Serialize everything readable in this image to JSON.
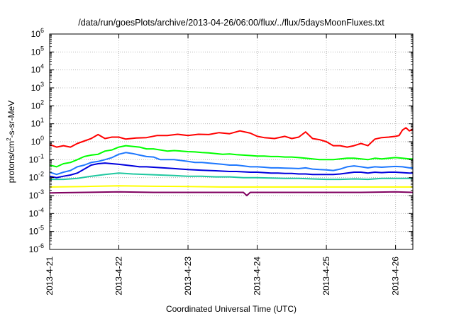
{
  "chart_data": {
    "type": "line",
    "title": "/data/run/goesPlots/archive/2013-04-26/06:00/flux/../flux/5daysMoonFluxes.txt",
    "xlabel": "Coordinated Universal Time (UTC)",
    "ylabel": {
      "prefix": "protons/cm",
      "superscript": "2",
      "suffix": "-s-sr-MeV"
    },
    "yscale": "log",
    "ylim_exponents": [
      -6,
      6
    ],
    "y_tick_labels": [
      {
        "exp": 6,
        "base": "10",
        "sup": "6"
      },
      {
        "exp": 5,
        "base": "10",
        "sup": "5"
      },
      {
        "exp": 4,
        "base": "10",
        "sup": "4"
      },
      {
        "exp": 3,
        "base": "10",
        "sup": "3"
      },
      {
        "exp": 2,
        "base": "10",
        "sup": "2"
      },
      {
        "exp": 1,
        "base": "10",
        "sup": "1"
      },
      {
        "exp": 0,
        "base": "10",
        "sup": "0"
      },
      {
        "exp": -1,
        "base": "10",
        "sup": "-1"
      },
      {
        "exp": -2,
        "base": "10",
        "sup": "-2"
      },
      {
        "exp": -3,
        "base": "10",
        "sup": "-3"
      },
      {
        "exp": -4,
        "base": "10",
        "sup": "-4"
      },
      {
        "exp": -5,
        "base": "10",
        "sup": "-5"
      },
      {
        "exp": -6,
        "base": "10",
        "sup": "-6"
      }
    ],
    "xlim_days": [
      0,
      5.25
    ],
    "x_ticks": [
      {
        "day": 0,
        "label": "2013-4-21"
      },
      {
        "day": 1,
        "label": "2013-4-22"
      },
      {
        "day": 2,
        "label": "2013-4-23"
      },
      {
        "day": 3,
        "label": "2013-4-24"
      },
      {
        "day": 4,
        "label": "2013-4-25"
      },
      {
        "day": 5,
        "label": "2013-4-26"
      }
    ],
    "grid": true,
    "series": [
      {
        "color": "#ff0000",
        "points": [
          [
            0,
            0.7
          ],
          [
            0.1,
            0.5
          ],
          [
            0.2,
            0.6
          ],
          [
            0.3,
            0.5
          ],
          [
            0.4,
            0.8
          ],
          [
            0.5,
            1.1
          ],
          [
            0.6,
            1.5
          ],
          [
            0.7,
            2.5
          ],
          [
            0.8,
            1.5
          ],
          [
            0.9,
            1.8
          ],
          [
            1.0,
            1.8
          ],
          [
            1.1,
            1.4
          ],
          [
            1.25,
            1.6
          ],
          [
            1.4,
            1.7
          ],
          [
            1.55,
            2.2
          ],
          [
            1.7,
            2.2
          ],
          [
            1.85,
            2.6
          ],
          [
            2.0,
            2.2
          ],
          [
            2.15,
            2.6
          ],
          [
            2.3,
            2.5
          ],
          [
            2.45,
            3.2
          ],
          [
            2.6,
            2.8
          ],
          [
            2.75,
            4.0
          ],
          [
            2.9,
            3.0
          ],
          [
            3.0,
            2.0
          ],
          [
            3.1,
            1.7
          ],
          [
            3.25,
            1.5
          ],
          [
            3.4,
            2.0
          ],
          [
            3.5,
            1.5
          ],
          [
            3.6,
            1.8
          ],
          [
            3.7,
            3.5
          ],
          [
            3.8,
            1.5
          ],
          [
            3.9,
            1.3
          ],
          [
            4.0,
            1.0
          ],
          [
            4.1,
            0.6
          ],
          [
            4.2,
            0.6
          ],
          [
            4.3,
            0.5
          ],
          [
            4.4,
            0.6
          ],
          [
            4.5,
            0.8
          ],
          [
            4.6,
            0.6
          ],
          [
            4.7,
            1.4
          ],
          [
            4.8,
            1.7
          ],
          [
            4.9,
            1.8
          ],
          [
            5.0,
            2.0
          ],
          [
            5.05,
            2.2
          ],
          [
            5.1,
            4.5
          ],
          [
            5.15,
            6.0
          ],
          [
            5.2,
            4.0
          ],
          [
            5.25,
            5.0
          ]
        ]
      },
      {
        "color": "#00ff00",
        "points": [
          [
            0,
            0.05
          ],
          [
            0.1,
            0.04
          ],
          [
            0.2,
            0.06
          ],
          [
            0.3,
            0.07
          ],
          [
            0.4,
            0.1
          ],
          [
            0.5,
            0.15
          ],
          [
            0.6,
            0.18
          ],
          [
            0.7,
            0.2
          ],
          [
            0.8,
            0.3
          ],
          [
            0.9,
            0.35
          ],
          [
            1.0,
            0.5
          ],
          [
            1.1,
            0.6
          ],
          [
            1.2,
            0.55
          ],
          [
            1.3,
            0.5
          ],
          [
            1.4,
            0.4
          ],
          [
            1.5,
            0.4
          ],
          [
            1.6,
            0.35
          ],
          [
            1.7,
            0.3
          ],
          [
            1.8,
            0.32
          ],
          [
            1.9,
            0.3
          ],
          [
            2.0,
            0.28
          ],
          [
            2.1,
            0.27
          ],
          [
            2.2,
            0.25
          ],
          [
            2.3,
            0.24
          ],
          [
            2.4,
            0.22
          ],
          [
            2.5,
            0.2
          ],
          [
            2.6,
            0.21
          ],
          [
            2.7,
            0.19
          ],
          [
            2.8,
            0.18
          ],
          [
            2.9,
            0.17
          ],
          [
            3.0,
            0.16
          ],
          [
            3.1,
            0.16
          ],
          [
            3.2,
            0.15
          ],
          [
            3.3,
            0.15
          ],
          [
            3.4,
            0.14
          ],
          [
            3.5,
            0.14
          ],
          [
            3.6,
            0.13
          ],
          [
            3.7,
            0.12
          ],
          [
            3.8,
            0.11
          ],
          [
            3.9,
            0.1
          ],
          [
            4.0,
            0.1
          ],
          [
            4.1,
            0.1
          ],
          [
            4.2,
            0.11
          ],
          [
            4.3,
            0.12
          ],
          [
            4.4,
            0.12
          ],
          [
            4.5,
            0.11
          ],
          [
            4.6,
            0.1
          ],
          [
            4.7,
            0.12
          ],
          [
            4.8,
            0.11
          ],
          [
            4.9,
            0.12
          ],
          [
            5.0,
            0.13
          ],
          [
            5.1,
            0.12
          ],
          [
            5.2,
            0.11
          ],
          [
            5.25,
            0.11
          ]
        ]
      },
      {
        "color": "#1e78ff",
        "points": [
          [
            0,
            0.02
          ],
          [
            0.1,
            0.015
          ],
          [
            0.2,
            0.02
          ],
          [
            0.3,
            0.025
          ],
          [
            0.4,
            0.04
          ],
          [
            0.5,
            0.05
          ],
          [
            0.6,
            0.07
          ],
          [
            0.7,
            0.08
          ],
          [
            0.8,
            0.1
          ],
          [
            0.9,
            0.13
          ],
          [
            1.0,
            0.2
          ],
          [
            1.1,
            0.25
          ],
          [
            1.2,
            0.22
          ],
          [
            1.3,
            0.18
          ],
          [
            1.4,
            0.15
          ],
          [
            1.5,
            0.14
          ],
          [
            1.6,
            0.1
          ],
          [
            1.7,
            0.1
          ],
          [
            1.8,
            0.1
          ],
          [
            1.9,
            0.09
          ],
          [
            2.0,
            0.08
          ],
          [
            2.1,
            0.07
          ],
          [
            2.2,
            0.07
          ],
          [
            2.3,
            0.065
          ],
          [
            2.4,
            0.06
          ],
          [
            2.5,
            0.055
          ],
          [
            2.6,
            0.05
          ],
          [
            2.7,
            0.05
          ],
          [
            2.8,
            0.045
          ],
          [
            2.9,
            0.04
          ],
          [
            3.0,
            0.04
          ],
          [
            3.1,
            0.038
          ],
          [
            3.2,
            0.035
          ],
          [
            3.3,
            0.035
          ],
          [
            3.4,
            0.034
          ],
          [
            3.5,
            0.033
          ],
          [
            3.6,
            0.032
          ],
          [
            3.7,
            0.035
          ],
          [
            3.8,
            0.03
          ],
          [
            3.9,
            0.028
          ],
          [
            4.0,
            0.027
          ],
          [
            4.1,
            0.025
          ],
          [
            4.2,
            0.03
          ],
          [
            4.3,
            0.04
          ],
          [
            4.4,
            0.045
          ],
          [
            4.5,
            0.04
          ],
          [
            4.6,
            0.035
          ],
          [
            4.7,
            0.04
          ],
          [
            4.8,
            0.038
          ],
          [
            4.9,
            0.04
          ],
          [
            5.0,
            0.042
          ],
          [
            5.1,
            0.04
          ],
          [
            5.2,
            0.035
          ],
          [
            5.25,
            0.035
          ]
        ]
      },
      {
        "color": "#0000dd",
        "points": [
          [
            0,
            0.012
          ],
          [
            0.1,
            0.01
          ],
          [
            0.2,
            0.012
          ],
          [
            0.3,
            0.014
          ],
          [
            0.4,
            0.018
          ],
          [
            0.5,
            0.03
          ],
          [
            0.6,
            0.05
          ],
          [
            0.7,
            0.06
          ],
          [
            0.8,
            0.065
          ],
          [
            0.9,
            0.06
          ],
          [
            1.0,
            0.055
          ],
          [
            1.1,
            0.05
          ],
          [
            1.2,
            0.045
          ],
          [
            1.3,
            0.04
          ],
          [
            1.4,
            0.04
          ],
          [
            1.5,
            0.038
          ],
          [
            1.6,
            0.036
          ],
          [
            1.7,
            0.034
          ],
          [
            1.8,
            0.032
          ],
          [
            1.9,
            0.03
          ],
          [
            2.0,
            0.028
          ],
          [
            2.1,
            0.027
          ],
          [
            2.2,
            0.026
          ],
          [
            2.3,
            0.025
          ],
          [
            2.4,
            0.024
          ],
          [
            2.5,
            0.023
          ],
          [
            2.6,
            0.022
          ],
          [
            2.7,
            0.022
          ],
          [
            2.8,
            0.021
          ],
          [
            2.9,
            0.02
          ],
          [
            3.0,
            0.02
          ],
          [
            3.1,
            0.019
          ],
          [
            3.2,
            0.018
          ],
          [
            3.3,
            0.018
          ],
          [
            3.4,
            0.017
          ],
          [
            3.5,
            0.017
          ],
          [
            3.6,
            0.016
          ],
          [
            3.7,
            0.016
          ],
          [
            3.8,
            0.015
          ],
          [
            3.9,
            0.015
          ],
          [
            4.0,
            0.015
          ],
          [
            4.1,
            0.015
          ],
          [
            4.2,
            0.016
          ],
          [
            4.3,
            0.018
          ],
          [
            4.4,
            0.02
          ],
          [
            4.5,
            0.02
          ],
          [
            4.6,
            0.018
          ],
          [
            4.7,
            0.02
          ],
          [
            4.8,
            0.019
          ],
          [
            4.9,
            0.02
          ],
          [
            5.0,
            0.02
          ],
          [
            5.1,
            0.019
          ],
          [
            5.2,
            0.018
          ],
          [
            5.25,
            0.018
          ]
        ]
      },
      {
        "color": "#20c8a0",
        "points": [
          [
            0,
            0.008
          ],
          [
            0.2,
            0.008
          ],
          [
            0.4,
            0.009
          ],
          [
            0.6,
            0.012
          ],
          [
            0.8,
            0.015
          ],
          [
            1.0,
            0.018
          ],
          [
            1.2,
            0.016
          ],
          [
            1.4,
            0.015
          ],
          [
            1.6,
            0.014
          ],
          [
            1.8,
            0.013
          ],
          [
            2.0,
            0.012
          ],
          [
            2.2,
            0.012
          ],
          [
            2.4,
            0.011
          ],
          [
            2.6,
            0.011
          ],
          [
            2.8,
            0.01
          ],
          [
            3.0,
            0.01
          ],
          [
            3.2,
            0.0095
          ],
          [
            3.4,
            0.009
          ],
          [
            3.6,
            0.009
          ],
          [
            3.8,
            0.0085
          ],
          [
            4.0,
            0.008
          ],
          [
            4.2,
            0.008
          ],
          [
            4.4,
            0.0085
          ],
          [
            4.6,
            0.008
          ],
          [
            4.8,
            0.009
          ],
          [
            5.0,
            0.009
          ],
          [
            5.25,
            0.009
          ]
        ]
      },
      {
        "color": "#ffff00",
        "points": [
          [
            0,
            0.003
          ],
          [
            0.5,
            0.0032
          ],
          [
            1.0,
            0.0035
          ],
          [
            1.5,
            0.0033
          ],
          [
            2.0,
            0.0032
          ],
          [
            2.5,
            0.003
          ],
          [
            3.0,
            0.003
          ],
          [
            3.5,
            0.003
          ],
          [
            4.0,
            0.003
          ],
          [
            4.5,
            0.003
          ],
          [
            5.0,
            0.003
          ],
          [
            5.25,
            0.003
          ]
        ]
      },
      {
        "color": "#800060",
        "points": [
          [
            0,
            0.0014
          ],
          [
            0.5,
            0.0015
          ],
          [
            1.0,
            0.0016
          ],
          [
            1.5,
            0.0015
          ],
          [
            2.0,
            0.0015
          ],
          [
            2.5,
            0.0015
          ],
          [
            2.8,
            0.0015
          ],
          [
            2.85,
            0.001
          ],
          [
            2.9,
            0.0015
          ],
          [
            3.5,
            0.0015
          ],
          [
            4.0,
            0.0015
          ],
          [
            4.5,
            0.0015
          ],
          [
            5.0,
            0.0016
          ],
          [
            5.25,
            0.0015
          ]
        ]
      }
    ]
  }
}
